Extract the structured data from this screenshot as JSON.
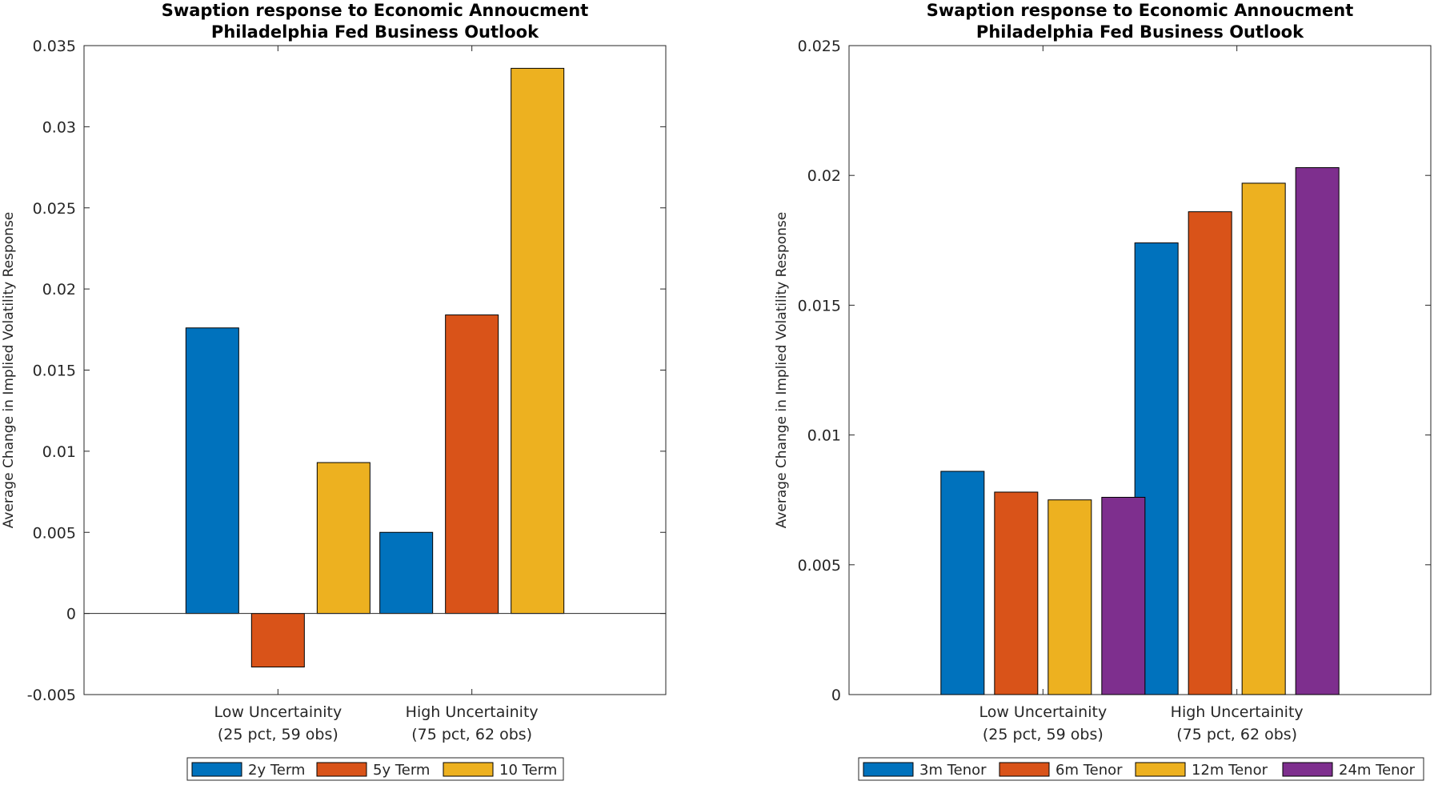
{
  "colors": {
    "blue": "#0072BD",
    "orange": "#D95319",
    "yellow": "#EDB120",
    "purple": "#7E2F8E"
  },
  "chart_data": [
    {
      "type": "bar",
      "title": [
        "Swaption response to Economic Annoucment",
        "Philadelphia Fed Business Outlook"
      ],
      "xlabel": "",
      "ylabel": "Average Change in Implied Volatility Response",
      "categories": [
        [
          "Low Uncertainity",
          "(25 pct, 59 obs)"
        ],
        [
          "High Uncertainity",
          "(75 pct, 62 obs)"
        ]
      ],
      "ylim": [
        -0.005,
        0.035
      ],
      "yticks": [
        -0.005,
        0,
        0.005,
        0.01,
        0.015,
        0.02,
        0.025,
        0.03,
        0.035
      ],
      "ytick_labels": [
        "-0.005",
        "0",
        "0.005",
        "0.01",
        "0.015",
        "0.02",
        "0.025",
        "0.03",
        "0.035"
      ],
      "legend_position": "bottom",
      "series": [
        {
          "name": "2y Term",
          "color": "#0072BD",
          "values": [
            0.0176,
            0.005
          ]
        },
        {
          "name": "5y Term",
          "color": "#D95319",
          "values": [
            -0.0033,
            0.0184
          ]
        },
        {
          "name": "10 Term",
          "color": "#EDB120",
          "values": [
            0.0093,
            0.0336
          ]
        }
      ]
    },
    {
      "type": "bar",
      "title": [
        "Swaption response to Economic Annoucment",
        "Philadelphia Fed Business Outlook"
      ],
      "xlabel": "",
      "ylabel": "Average Change in Implied Volatility Response",
      "categories": [
        [
          "Low Uncertainity",
          "(25 pct, 59 obs)"
        ],
        [
          "High Uncertainity",
          "(75 pct, 62 obs)"
        ]
      ],
      "ylim": [
        0,
        0.025
      ],
      "yticks": [
        0,
        0.005,
        0.01,
        0.015,
        0.02,
        0.025
      ],
      "ytick_labels": [
        "0",
        "0.005",
        "0.01",
        "0.015",
        "0.02",
        "0.025"
      ],
      "legend_position": "bottom",
      "series": [
        {
          "name": "3m Tenor",
          "color": "#0072BD",
          "values": [
            0.0086,
            0.0174
          ]
        },
        {
          "name": "6m Tenor",
          "color": "#D95319",
          "values": [
            0.0078,
            0.0186
          ]
        },
        {
          "name": "12m Tenor",
          "color": "#EDB120",
          "values": [
            0.0075,
            0.0197
          ]
        },
        {
          "name": "24m Tenor",
          "color": "#7E2F8E",
          "values": [
            0.0076,
            0.0203
          ]
        }
      ]
    }
  ]
}
